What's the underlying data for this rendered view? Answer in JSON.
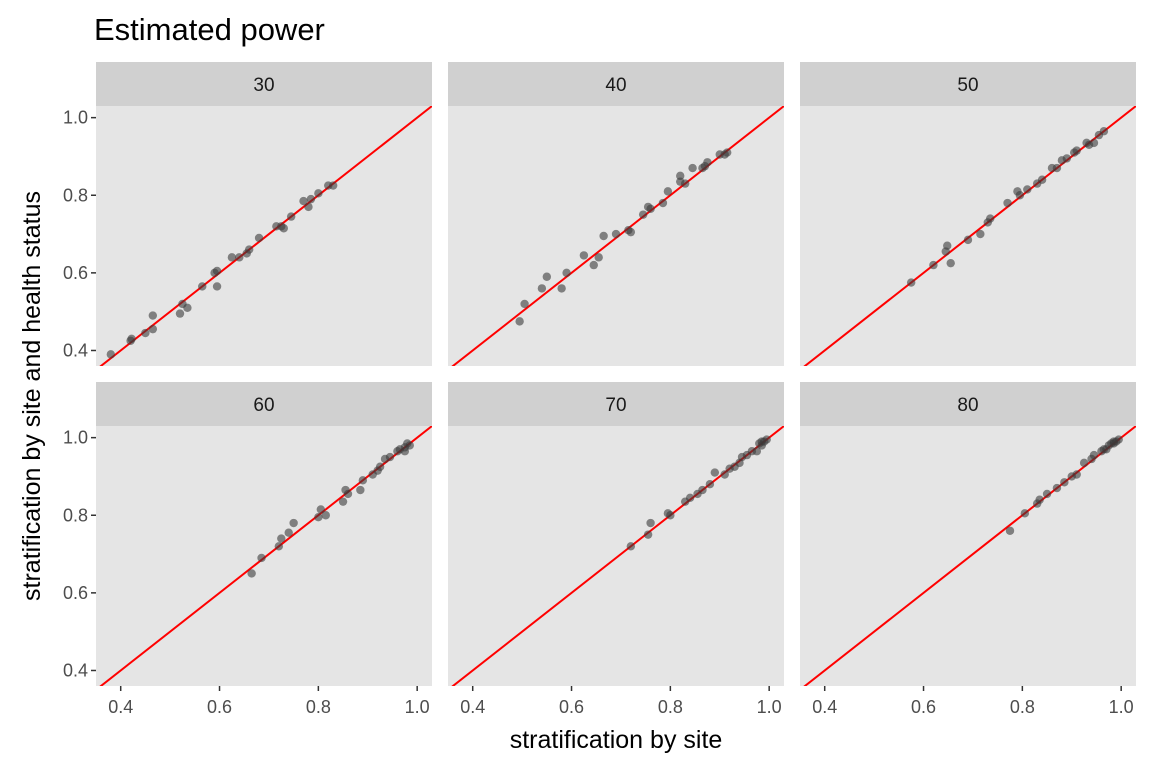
{
  "chart_data": {
    "type": "scatter",
    "title": "Estimated power",
    "xlabel": "stratification by site",
    "ylabel": "stratification by site and health status",
    "xlim": [
      0.35,
      1.03
    ],
    "ylim": [
      0.36,
      1.03
    ],
    "x_ticks": [
      "0.4",
      "0.6",
      "0.8",
      "1.0"
    ],
    "y_ticks": [
      "0.4",
      "0.6",
      "0.8",
      "1.0"
    ],
    "reference_line": "y = x",
    "grid": false,
    "colors": {
      "panel_background": "#e5e5e5",
      "strip_background": "#d0d0d0",
      "points": "#3a3a3a",
      "reference_line": "#ff0000"
    },
    "panels": [
      {
        "label": "30",
        "points": [
          [
            0.38,
            0.39
          ],
          [
            0.42,
            0.425
          ],
          [
            0.422,
            0.43
          ],
          [
            0.45,
            0.445
          ],
          [
            0.465,
            0.455
          ],
          [
            0.465,
            0.49
          ],
          [
            0.52,
            0.495
          ],
          [
            0.525,
            0.52
          ],
          [
            0.535,
            0.51
          ],
          [
            0.565,
            0.565
          ],
          [
            0.59,
            0.6
          ],
          [
            0.595,
            0.605
          ],
          [
            0.595,
            0.565
          ],
          [
            0.625,
            0.64
          ],
          [
            0.64,
            0.64
          ],
          [
            0.655,
            0.65
          ],
          [
            0.66,
            0.66
          ],
          [
            0.68,
            0.69
          ],
          [
            0.715,
            0.72
          ],
          [
            0.725,
            0.72
          ],
          [
            0.73,
            0.715
          ],
          [
            0.745,
            0.745
          ],
          [
            0.77,
            0.785
          ],
          [
            0.78,
            0.77
          ],
          [
            0.785,
            0.79
          ],
          [
            0.8,
            0.805
          ],
          [
            0.82,
            0.825
          ],
          [
            0.83,
            0.825
          ]
        ]
      },
      {
        "label": "40",
        "points": [
          [
            0.495,
            0.475
          ],
          [
            0.505,
            0.52
          ],
          [
            0.54,
            0.56
          ],
          [
            0.55,
            0.59
          ],
          [
            0.58,
            0.56
          ],
          [
            0.59,
            0.6
          ],
          [
            0.625,
            0.645
          ],
          [
            0.645,
            0.62
          ],
          [
            0.655,
            0.64
          ],
          [
            0.665,
            0.695
          ],
          [
            0.69,
            0.7
          ],
          [
            0.715,
            0.71
          ],
          [
            0.72,
            0.705
          ],
          [
            0.745,
            0.75
          ],
          [
            0.755,
            0.77
          ],
          [
            0.76,
            0.765
          ],
          [
            0.785,
            0.78
          ],
          [
            0.795,
            0.81
          ],
          [
            0.82,
            0.85
          ],
          [
            0.82,
            0.835
          ],
          [
            0.83,
            0.83
          ],
          [
            0.845,
            0.87
          ],
          [
            0.865,
            0.87
          ],
          [
            0.87,
            0.875
          ],
          [
            0.875,
            0.885
          ],
          [
            0.9,
            0.905
          ],
          [
            0.91,
            0.905
          ],
          [
            0.915,
            0.91
          ]
        ]
      },
      {
        "label": "50",
        "points": [
          [
            0.575,
            0.575
          ],
          [
            0.62,
            0.62
          ],
          [
            0.645,
            0.655
          ],
          [
            0.648,
            0.67
          ],
          [
            0.655,
            0.625
          ],
          [
            0.69,
            0.685
          ],
          [
            0.715,
            0.7
          ],
          [
            0.73,
            0.73
          ],
          [
            0.735,
            0.74
          ],
          [
            0.77,
            0.78
          ],
          [
            0.79,
            0.81
          ],
          [
            0.795,
            0.8
          ],
          [
            0.81,
            0.815
          ],
          [
            0.83,
            0.83
          ],
          [
            0.84,
            0.84
          ],
          [
            0.86,
            0.87
          ],
          [
            0.87,
            0.87
          ],
          [
            0.88,
            0.89
          ],
          [
            0.89,
            0.895
          ],
          [
            0.905,
            0.91
          ],
          [
            0.91,
            0.915
          ],
          [
            0.93,
            0.935
          ],
          [
            0.935,
            0.93
          ],
          [
            0.945,
            0.935
          ],
          [
            0.955,
            0.955
          ],
          [
            0.965,
            0.965
          ]
        ]
      },
      {
        "label": "60",
        "points": [
          [
            0.665,
            0.65
          ],
          [
            0.685,
            0.69
          ],
          [
            0.72,
            0.72
          ],
          [
            0.725,
            0.74
          ],
          [
            0.74,
            0.755
          ],
          [
            0.75,
            0.78
          ],
          [
            0.8,
            0.795
          ],
          [
            0.805,
            0.815
          ],
          [
            0.815,
            0.8
          ],
          [
            0.85,
            0.835
          ],
          [
            0.855,
            0.865
          ],
          [
            0.86,
            0.855
          ],
          [
            0.885,
            0.865
          ],
          [
            0.89,
            0.89
          ],
          [
            0.91,
            0.905
          ],
          [
            0.92,
            0.915
          ],
          [
            0.925,
            0.925
          ],
          [
            0.935,
            0.945
          ],
          [
            0.945,
            0.95
          ],
          [
            0.96,
            0.965
          ],
          [
            0.965,
            0.97
          ],
          [
            0.975,
            0.975
          ],
          [
            0.975,
            0.965
          ],
          [
            0.98,
            0.985
          ],
          [
            0.985,
            0.98
          ]
        ]
      },
      {
        "label": "70",
        "points": [
          [
            0.72,
            0.72
          ],
          [
            0.755,
            0.75
          ],
          [
            0.76,
            0.78
          ],
          [
            0.795,
            0.805
          ],
          [
            0.8,
            0.8
          ],
          [
            0.83,
            0.835
          ],
          [
            0.84,
            0.845
          ],
          [
            0.855,
            0.855
          ],
          [
            0.865,
            0.865
          ],
          [
            0.88,
            0.88
          ],
          [
            0.89,
            0.91
          ],
          [
            0.91,
            0.905
          ],
          [
            0.92,
            0.92
          ],
          [
            0.93,
            0.925
          ],
          [
            0.94,
            0.935
          ],
          [
            0.945,
            0.95
          ],
          [
            0.955,
            0.955
          ],
          [
            0.965,
            0.965
          ],
          [
            0.975,
            0.965
          ],
          [
            0.98,
            0.985
          ],
          [
            0.985,
            0.99
          ],
          [
            0.99,
            0.99
          ],
          [
            0.995,
            0.995
          ],
          [
            0.985,
            0.98
          ]
        ]
      },
      {
        "label": "80",
        "points": [
          [
            0.775,
            0.76
          ],
          [
            0.805,
            0.805
          ],
          [
            0.83,
            0.83
          ],
          [
            0.835,
            0.84
          ],
          [
            0.85,
            0.855
          ],
          [
            0.87,
            0.87
          ],
          [
            0.885,
            0.885
          ],
          [
            0.9,
            0.9
          ],
          [
            0.91,
            0.905
          ],
          [
            0.925,
            0.935
          ],
          [
            0.94,
            0.945
          ],
          [
            0.945,
            0.955
          ],
          [
            0.96,
            0.965
          ],
          [
            0.965,
            0.97
          ],
          [
            0.97,
            0.97
          ],
          [
            0.98,
            0.985
          ],
          [
            0.985,
            0.99
          ],
          [
            0.99,
            0.99
          ],
          [
            0.995,
            0.995
          ],
          [
            0.985,
            0.985
          ],
          [
            0.975,
            0.98
          ]
        ]
      }
    ]
  }
}
